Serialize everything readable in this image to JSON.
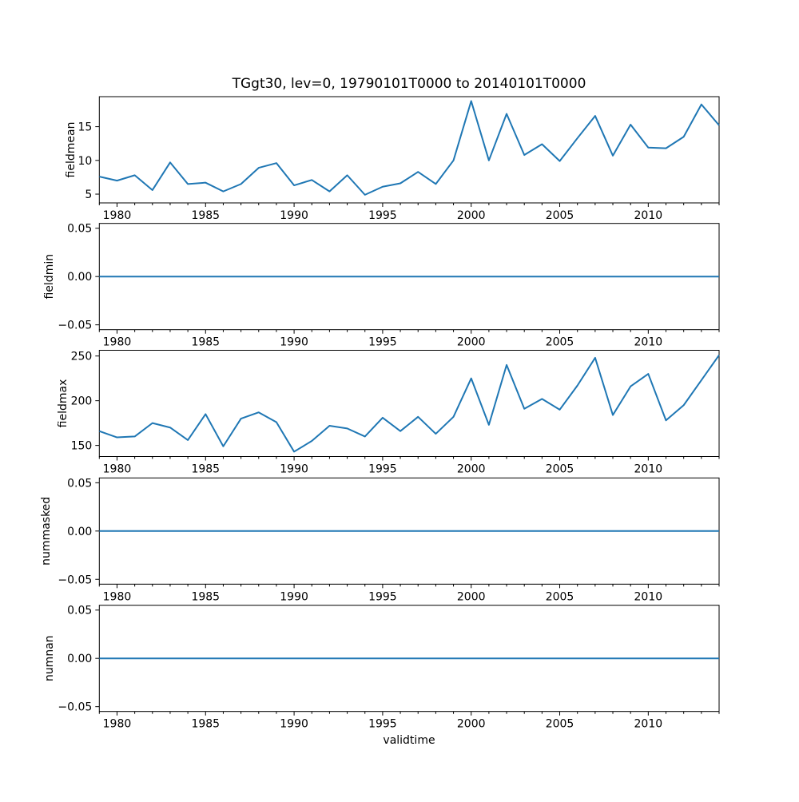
{
  "figure": {
    "title": "TGgt30, lev=0, 19790101T0000 to 20140101T0000",
    "background": "#ffffff",
    "line_color": "#1f77b4",
    "axis_color": "#000000"
  },
  "x_axis": {
    "label": "validtime",
    "xlim": [
      1979,
      2014
    ],
    "major_ticks": [
      1980,
      1985,
      1990,
      1995,
      2000,
      2005,
      2010
    ],
    "tick_labels": [
      "1980",
      "1985",
      "1990",
      "1995",
      "2000",
      "2005",
      "2010"
    ],
    "minor_tick_interval": 1
  },
  "x_values": [
    1979,
    1980,
    1981,
    1982,
    1983,
    1984,
    1985,
    1986,
    1987,
    1988,
    1989,
    1990,
    1991,
    1992,
    1993,
    1994,
    1995,
    1996,
    1997,
    1998,
    1999,
    2000,
    2001,
    2002,
    2003,
    2004,
    2005,
    2006,
    2007,
    2008,
    2009,
    2010,
    2011,
    2012,
    2013,
    2014
  ],
  "chart_data": [
    {
      "type": "line",
      "ylabel": "fieldmean",
      "ylim": [
        3.7,
        19.45
      ],
      "yticks": [
        5,
        10,
        15
      ],
      "ytick_labels": [
        "5",
        "10",
        "15"
      ],
      "values": [
        7.6,
        7.0,
        7.8,
        5.6,
        9.7,
        6.5,
        6.7,
        5.4,
        6.5,
        8.9,
        9.6,
        6.3,
        7.1,
        5.4,
        7.8,
        4.9,
        6.1,
        6.6,
        8.3,
        6.5,
        10.0,
        18.8,
        10.0,
        16.9,
        10.8,
        12.4,
        9.9,
        13.3,
        16.6,
        10.7,
        15.3,
        11.9,
        11.8,
        13.5,
        18.3,
        15.2
      ]
    },
    {
      "type": "line",
      "ylabel": "fieldmin",
      "ylim": [
        -0.055,
        0.055
      ],
      "yticks": [
        -0.05,
        0,
        0.05
      ],
      "ytick_labels": [
        "−0.05",
        "0.00",
        "0.05"
      ],
      "values": [
        0,
        0,
        0,
        0,
        0,
        0,
        0,
        0,
        0,
        0,
        0,
        0,
        0,
        0,
        0,
        0,
        0,
        0,
        0,
        0,
        0,
        0,
        0,
        0,
        0,
        0,
        0,
        0,
        0,
        0,
        0,
        0,
        0,
        0,
        0,
        0
      ]
    },
    {
      "type": "line",
      "ylabel": "fieldmax",
      "ylim": [
        137.6,
        256.4
      ],
      "yticks": [
        150,
        200,
        250
      ],
      "ytick_labels": [
        "150",
        "200",
        "250"
      ],
      "values": [
        166,
        159,
        160,
        175,
        170,
        156,
        185,
        149,
        180,
        187,
        176,
        143,
        155,
        172,
        169,
        160,
        181,
        166,
        182,
        163,
        182,
        225,
        173,
        240,
        191,
        202,
        190,
        217,
        248,
        184,
        216,
        230,
        178,
        195,
        223,
        251
      ]
    },
    {
      "type": "line",
      "ylabel": "nummasked",
      "ylim": [
        -0.055,
        0.055
      ],
      "yticks": [
        -0.05,
        0,
        0.05
      ],
      "ytick_labels": [
        "−0.05",
        "0.00",
        "0.05"
      ],
      "values": [
        0,
        0,
        0,
        0,
        0,
        0,
        0,
        0,
        0,
        0,
        0,
        0,
        0,
        0,
        0,
        0,
        0,
        0,
        0,
        0,
        0,
        0,
        0,
        0,
        0,
        0,
        0,
        0,
        0,
        0,
        0,
        0,
        0,
        0,
        0,
        0
      ]
    },
    {
      "type": "line",
      "ylabel": "numnan",
      "ylim": [
        -0.055,
        0.055
      ],
      "yticks": [
        -0.05,
        0,
        0.05
      ],
      "ytick_labels": [
        "−0.05",
        "0.00",
        "0.05"
      ],
      "values": [
        0,
        0,
        0,
        0,
        0,
        0,
        0,
        0,
        0,
        0,
        0,
        0,
        0,
        0,
        0,
        0,
        0,
        0,
        0,
        0,
        0,
        0,
        0,
        0,
        0,
        0,
        0,
        0,
        0,
        0,
        0,
        0,
        0,
        0,
        0,
        0
      ]
    }
  ]
}
